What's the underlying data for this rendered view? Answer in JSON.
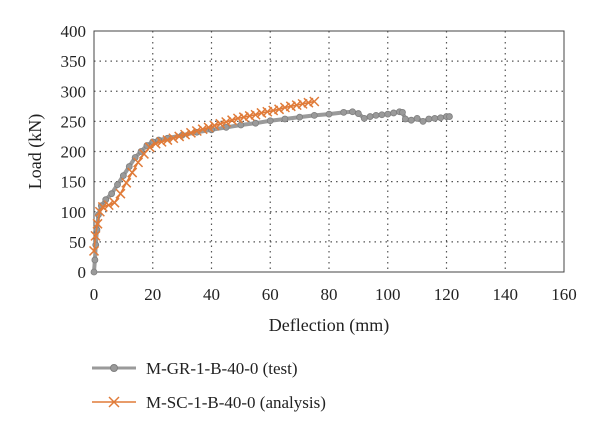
{
  "chart_data": {
    "type": "line",
    "title": "",
    "xlabel": "Deflection (mm)",
    "ylabel": "Load (kN)",
    "xlim": [
      0,
      160
    ],
    "ylim": [
      0,
      400
    ],
    "x_ticks": [
      "0",
      "20",
      "40",
      "60",
      "80",
      "100",
      "120",
      "140",
      "160"
    ],
    "y_ticks": [
      "0",
      "50",
      "100",
      "150",
      "200",
      "250",
      "300",
      "350",
      "400"
    ],
    "grid": "dotted",
    "legend_position": "bottom-left",
    "series": [
      {
        "name": "M-GR-1-B-40-0 (test)",
        "color": "#9a9a9a",
        "marker": "circle",
        "points": [
          [
            0,
            0
          ],
          [
            0.3,
            20
          ],
          [
            0.6,
            45
          ],
          [
            1,
            70
          ],
          [
            1.5,
            95
          ],
          [
            2.5,
            110
          ],
          [
            4,
            120
          ],
          [
            6,
            130
          ],
          [
            8,
            145
          ],
          [
            10,
            160
          ],
          [
            12,
            175
          ],
          [
            14,
            190
          ],
          [
            16,
            200
          ],
          [
            18,
            210
          ],
          [
            20,
            216
          ],
          [
            22,
            219
          ],
          [
            25,
            222
          ],
          [
            30,
            227
          ],
          [
            35,
            232
          ],
          [
            40,
            236
          ],
          [
            45,
            240
          ],
          [
            50,
            244
          ],
          [
            55,
            247
          ],
          [
            60,
            251
          ],
          [
            65,
            254
          ],
          [
            70,
            257
          ],
          [
            75,
            260
          ],
          [
            80,
            262
          ],
          [
            85,
            265
          ],
          [
            88,
            266
          ],
          [
            90,
            263
          ],
          [
            92,
            255
          ],
          [
            94,
            258
          ],
          [
            96,
            260
          ],
          [
            98,
            261
          ],
          [
            100,
            262
          ],
          [
            102,
            264
          ],
          [
            104,
            266
          ],
          [
            105,
            265
          ],
          [
            106,
            254
          ],
          [
            108,
            252
          ],
          [
            110,
            255
          ],
          [
            112,
            250
          ],
          [
            114,
            254
          ],
          [
            116,
            255
          ],
          [
            118,
            256
          ],
          [
            120,
            258
          ],
          [
            121,
            258
          ]
        ]
      },
      {
        "name": "M-SC-1-B-40-0 (analysis)",
        "color": "#e07b39",
        "marker": "x",
        "points": [
          [
            0,
            35
          ],
          [
            0.5,
            60
          ],
          [
            1.2,
            80
          ],
          [
            2,
            100
          ],
          [
            3,
            108
          ],
          [
            5,
            111
          ],
          [
            7,
            115
          ],
          [
            9,
            130
          ],
          [
            11,
            148
          ],
          [
            13,
            165
          ],
          [
            15,
            182
          ],
          [
            17,
            196
          ],
          [
            19,
            207
          ],
          [
            21,
            213
          ],
          [
            23,
            216
          ],
          [
            25,
            219
          ],
          [
            27,
            222
          ],
          [
            29,
            225
          ],
          [
            31,
            228
          ],
          [
            33,
            231
          ],
          [
            35,
            234
          ],
          [
            37,
            237
          ],
          [
            39,
            240
          ],
          [
            41,
            243
          ],
          [
            43,
            246
          ],
          [
            45,
            249
          ],
          [
            47,
            252
          ],
          [
            49,
            255
          ],
          [
            51,
            257
          ],
          [
            53,
            259
          ],
          [
            55,
            261
          ],
          [
            57,
            264
          ],
          [
            59,
            266
          ],
          [
            61,
            268
          ],
          [
            63,
            270
          ],
          [
            65,
            273
          ],
          [
            67,
            275
          ],
          [
            69,
            277
          ],
          [
            71,
            279
          ],
          [
            73,
            281
          ],
          [
            75,
            283
          ]
        ]
      }
    ]
  }
}
